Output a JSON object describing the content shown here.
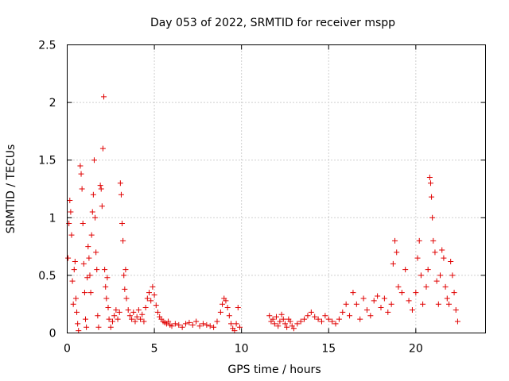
{
  "chart_data": {
    "type": "scatter",
    "title": "Day 053 of 2022, SRMTID for receiver mspp",
    "xlabel": "GPS time / hours",
    "ylabel": "SRMTID / TECUs",
    "xlim": [
      0,
      24
    ],
    "ylim": [
      0,
      2.5
    ],
    "xticks": [
      0,
      5,
      10,
      15,
      20
    ],
    "xtick_labels": [
      "0",
      "5",
      "10",
      "15",
      "20"
    ],
    "yticks": [
      0,
      0.5,
      1,
      1.5,
      2,
      2.5
    ],
    "ytick_labels": [
      "0",
      "0.5",
      "1",
      "1.5",
      "2",
      "2.5"
    ],
    "grid": true,
    "marker": "+",
    "color": "#e00000",
    "series": [
      {
        "name": "SRMTID",
        "points": [
          [
            0.05,
            0.65
          ],
          [
            0.1,
            0.95
          ],
          [
            0.15,
            1.15
          ],
          [
            0.2,
            1.05
          ],
          [
            0.25,
            0.85
          ],
          [
            0.3,
            0.45
          ],
          [
            0.35,
            0.25
          ],
          [
            0.4,
            0.55
          ],
          [
            0.45,
            0.62
          ],
          [
            0.5,
            0.3
          ],
          [
            0.55,
            0.18
          ],
          [
            0.6,
            0.08
          ],
          [
            0.65,
            0.02
          ],
          [
            0.75,
            1.45
          ],
          [
            0.8,
            1.38
          ],
          [
            0.85,
            1.25
          ],
          [
            0.9,
            0.95
          ],
          [
            0.95,
            0.6
          ],
          [
            1.0,
            0.35
          ],
          [
            1.05,
            0.12
          ],
          [
            1.1,
            0.05
          ],
          [
            1.15,
            0.48
          ],
          [
            1.2,
            0.75
          ],
          [
            1.25,
            0.65
          ],
          [
            1.3,
            0.5
          ],
          [
            1.35,
            0.35
          ],
          [
            1.4,
            0.85
          ],
          [
            1.45,
            1.05
          ],
          [
            1.5,
            1.2
          ],
          [
            1.55,
            1.5
          ],
          [
            1.6,
            1.0
          ],
          [
            1.65,
            0.7
          ],
          [
            1.7,
            0.55
          ],
          [
            1.75,
            0.15
          ],
          [
            1.8,
            0.05
          ],
          [
            1.9,
            1.28
          ],
          [
            1.95,
            1.25
          ],
          [
            2.0,
            1.1
          ],
          [
            2.05,
            1.6
          ],
          [
            2.1,
            2.05
          ],
          [
            2.15,
            0.55
          ],
          [
            2.2,
            0.4
          ],
          [
            2.25,
            0.3
          ],
          [
            2.3,
            0.48
          ],
          [
            2.35,
            0.22
          ],
          [
            2.4,
            0.12
          ],
          [
            2.5,
            0.05
          ],
          [
            2.6,
            0.1
          ],
          [
            2.7,
            0.15
          ],
          [
            2.8,
            0.2
          ],
          [
            2.9,
            0.12
          ],
          [
            3.0,
            0.18
          ],
          [
            3.05,
            1.3
          ],
          [
            3.1,
            1.2
          ],
          [
            3.15,
            0.95
          ],
          [
            3.2,
            0.8
          ],
          [
            3.25,
            0.5
          ],
          [
            3.3,
            0.38
          ],
          [
            3.35,
            0.55
          ],
          [
            3.4,
            0.3
          ],
          [
            3.5,
            0.2
          ],
          [
            3.6,
            0.15
          ],
          [
            3.7,
            0.12
          ],
          [
            3.8,
            0.18
          ],
          [
            3.9,
            0.1
          ],
          [
            4.0,
            0.14
          ],
          [
            4.1,
            0.2
          ],
          [
            4.2,
            0.12
          ],
          [
            4.3,
            0.16
          ],
          [
            4.4,
            0.1
          ],
          [
            4.5,
            0.22
          ],
          [
            4.6,
            0.3
          ],
          [
            4.7,
            0.35
          ],
          [
            4.8,
            0.28
          ],
          [
            4.9,
            0.4
          ],
          [
            5.0,
            0.33
          ],
          [
            5.1,
            0.24
          ],
          [
            5.2,
            0.18
          ],
          [
            5.3,
            0.14
          ],
          [
            5.4,
            0.12
          ],
          [
            5.5,
            0.1
          ],
          [
            5.6,
            0.09
          ],
          [
            5.7,
            0.08
          ],
          [
            5.8,
            0.1
          ],
          [
            5.9,
            0.07
          ],
          [
            6.0,
            0.06
          ],
          [
            6.2,
            0.08
          ],
          [
            6.4,
            0.07
          ],
          [
            6.6,
            0.05
          ],
          [
            6.8,
            0.08
          ],
          [
            7.0,
            0.09
          ],
          [
            7.2,
            0.07
          ],
          [
            7.4,
            0.1
          ],
          [
            7.6,
            0.06
          ],
          [
            7.8,
            0.08
          ],
          [
            8.0,
            0.07
          ],
          [
            8.2,
            0.06
          ],
          [
            8.4,
            0.05
          ],
          [
            8.6,
            0.1
          ],
          [
            8.8,
            0.18
          ],
          [
            8.9,
            0.25
          ],
          [
            9.0,
            0.3
          ],
          [
            9.1,
            0.28
          ],
          [
            9.2,
            0.22
          ],
          [
            9.3,
            0.15
          ],
          [
            9.4,
            0.08
          ],
          [
            9.5,
            0.04
          ],
          [
            9.6,
            0.02
          ],
          [
            9.7,
            0.08
          ],
          [
            9.8,
            0.22
          ],
          [
            9.9,
            0.05
          ],
          [
            11.6,
            0.15
          ],
          [
            11.7,
            0.1
          ],
          [
            11.8,
            0.12
          ],
          [
            11.9,
            0.08
          ],
          [
            12.0,
            0.14
          ],
          [
            12.1,
            0.06
          ],
          [
            12.2,
            0.1
          ],
          [
            12.3,
            0.16
          ],
          [
            12.4,
            0.12
          ],
          [
            12.5,
            0.08
          ],
          [
            12.6,
            0.05
          ],
          [
            12.7,
            0.12
          ],
          [
            12.8,
            0.1
          ],
          [
            12.9,
            0.06
          ],
          [
            13.0,
            0.04
          ],
          [
            13.2,
            0.08
          ],
          [
            13.4,
            0.1
          ],
          [
            13.6,
            0.12
          ],
          [
            13.8,
            0.15
          ],
          [
            14.0,
            0.18
          ],
          [
            14.2,
            0.14
          ],
          [
            14.4,
            0.12
          ],
          [
            14.6,
            0.1
          ],
          [
            14.8,
            0.15
          ],
          [
            15.0,
            0.12
          ],
          [
            15.2,
            0.1
          ],
          [
            15.4,
            0.08
          ],
          [
            15.6,
            0.12
          ],
          [
            15.8,
            0.18
          ],
          [
            16.0,
            0.25
          ],
          [
            16.2,
            0.15
          ],
          [
            16.4,
            0.35
          ],
          [
            16.6,
            0.25
          ],
          [
            16.8,
            0.12
          ],
          [
            17.0,
            0.3
          ],
          [
            17.2,
            0.2
          ],
          [
            17.4,
            0.15
          ],
          [
            17.6,
            0.28
          ],
          [
            17.8,
            0.32
          ],
          [
            18.0,
            0.22
          ],
          [
            18.2,
            0.3
          ],
          [
            18.4,
            0.18
          ],
          [
            18.6,
            0.25
          ],
          [
            18.7,
            0.6
          ],
          [
            18.8,
            0.8
          ],
          [
            18.9,
            0.7
          ],
          [
            19.0,
            0.4
          ],
          [
            19.2,
            0.35
          ],
          [
            19.4,
            0.55
          ],
          [
            19.6,
            0.28
          ],
          [
            19.8,
            0.2
          ],
          [
            20.0,
            0.35
          ],
          [
            20.1,
            0.65
          ],
          [
            20.2,
            0.8
          ],
          [
            20.3,
            0.5
          ],
          [
            20.4,
            0.25
          ],
          [
            20.6,
            0.4
          ],
          [
            20.7,
            0.55
          ],
          [
            20.8,
            1.35
          ],
          [
            20.85,
            1.3
          ],
          [
            20.9,
            1.18
          ],
          [
            20.95,
            1.0
          ],
          [
            21.0,
            0.8
          ],
          [
            21.1,
            0.7
          ],
          [
            21.2,
            0.45
          ],
          [
            21.3,
            0.25
          ],
          [
            21.4,
            0.5
          ],
          [
            21.5,
            0.72
          ],
          [
            21.6,
            0.65
          ],
          [
            21.7,
            0.4
          ],
          [
            21.8,
            0.3
          ],
          [
            21.9,
            0.25
          ],
          [
            22.0,
            0.62
          ],
          [
            22.1,
            0.5
          ],
          [
            22.2,
            0.35
          ],
          [
            22.3,
            0.2
          ],
          [
            22.4,
            0.1
          ]
        ]
      }
    ]
  }
}
